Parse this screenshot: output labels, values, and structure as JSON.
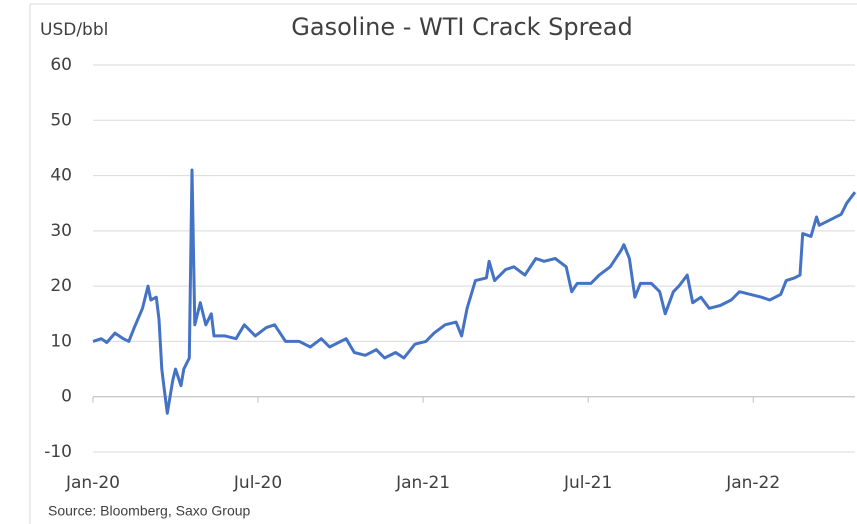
{
  "chart_data": {
    "type": "line",
    "title": "Gasoline - WTI Crack Spread",
    "y_label": "USD/bbl",
    "source": "Source: Bloomberg, Saxo Group",
    "xlim": [
      0,
      27.7
    ],
    "xticks": [
      {
        "value": 0,
        "label": "Jan-20"
      },
      {
        "value": 6,
        "label": "Jul-20"
      },
      {
        "value": 12,
        "label": "Jan-21"
      },
      {
        "value": 18,
        "label": "Jul-21"
      },
      {
        "value": 24,
        "label": "Jan-22"
      }
    ],
    "ylim": [
      -10,
      60
    ],
    "yticks": [
      -10,
      0,
      10,
      20,
      30,
      40,
      50,
      60
    ],
    "grid": true,
    "series": [
      {
        "name": "Gasoline - WTI Crack Spread",
        "color": "#4472c4",
        "x": [
          0,
          0.3,
          0.5,
          0.8,
          1.1,
          1.3,
          1.5,
          1.8,
          2.0,
          2.1,
          2.3,
          2.4,
          2.5,
          2.6,
          2.7,
          2.9,
          3.0,
          3.2,
          3.3,
          3.5,
          3.6,
          3.7,
          3.9,
          4.1,
          4.3,
          4.4,
          4.8,
          5.2,
          5.5,
          5.9,
          6.3,
          6.6,
          7.0,
          7.5,
          7.9,
          8.3,
          8.6,
          9.2,
          9.5,
          9.9,
          10.3,
          10.6,
          11.0,
          11.3,
          11.7,
          12.1,
          12.4,
          12.8,
          13.2,
          13.4,
          13.6,
          13.9,
          14.3,
          14.4,
          14.6,
          15.0,
          15.3,
          15.7,
          16.1,
          16.4,
          16.8,
          17.2,
          17.4,
          17.6,
          18.1,
          18.4,
          18.8,
          19.2,
          19.3,
          19.5,
          19.7,
          19.9,
          20.3,
          20.6,
          20.8,
          21.1,
          21.3,
          21.6,
          21.8,
          22.1,
          22.4,
          22.8,
          23.2,
          23.5,
          23.9,
          24.3,
          24.6,
          25.0,
          25.2,
          25.5,
          25.7,
          25.8,
          26.1,
          26.3,
          26.4,
          26.8,
          27.2,
          27.4,
          27.7
        ],
        "values": [
          10,
          10.5,
          9.8,
          11.5,
          10.5,
          10,
          12.5,
          16,
          20,
          17.5,
          18,
          14,
          5,
          1,
          -3,
          3,
          5,
          2,
          5,
          7,
          41,
          13,
          17,
          13,
          15,
          11,
          11,
          10.5,
          13,
          11,
          12.5,
          13,
          10,
          10,
          9,
          10.5,
          9,
          10.5,
          8,
          7.5,
          8.5,
          7,
          8,
          7,
          9.5,
          10,
          11.5,
          13,
          13.5,
          11,
          16,
          21,
          21.5,
          24.5,
          21,
          23,
          23.5,
          22,
          25,
          24.5,
          25,
          23.5,
          19,
          20.5,
          20.5,
          22,
          23.5,
          26.5,
          27.5,
          25,
          18,
          20.5,
          20.5,
          19,
          15,
          19,
          20,
          22,
          17,
          18,
          16,
          16.5,
          17.5,
          19,
          18.5,
          18,
          17.5,
          18.5,
          21,
          21.5,
          22,
          29.5,
          29,
          32.5,
          31,
          32,
          33,
          35,
          37
        ]
      }
    ]
  }
}
